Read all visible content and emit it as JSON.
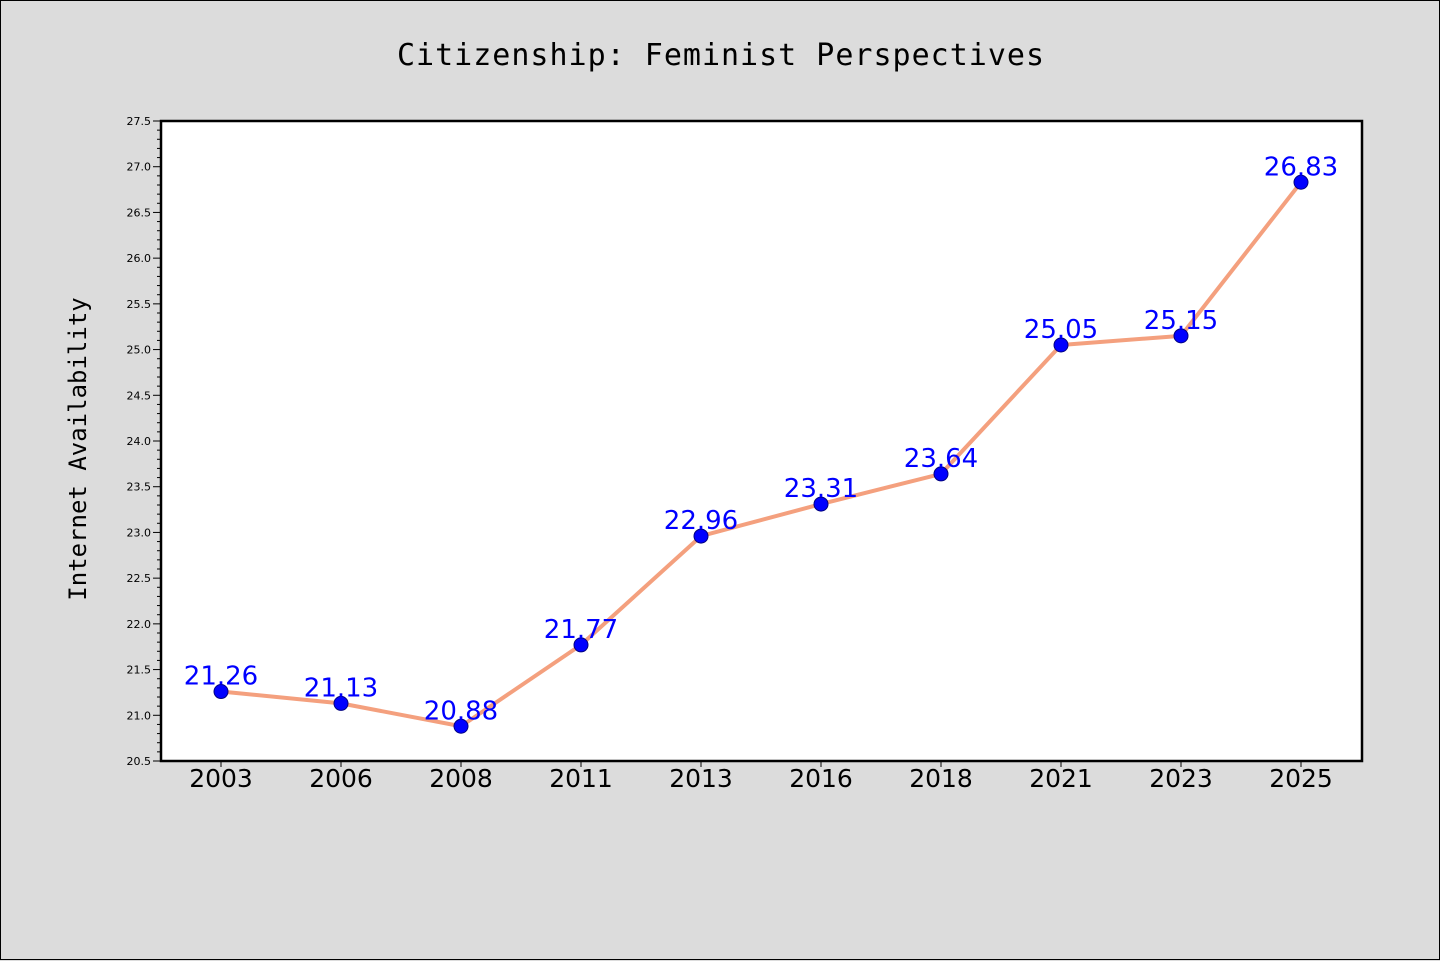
{
  "chart_data": {
    "type": "line",
    "title": "Citizenship: Feminist Perspectives",
    "xlabel": "",
    "ylabel": "Internet Availability",
    "categories": [
      "2003",
      "2006",
      "2008",
      "2011",
      "2013",
      "2016",
      "2018",
      "2021",
      "2023",
      "2025"
    ],
    "series": [
      {
        "values": [
          21.26,
          21.13,
          20.88,
          21.77,
          22.96,
          23.31,
          23.64,
          25.05,
          25.15,
          26.83
        ],
        "labels": [
          "21.26",
          "21.13",
          "20.88",
          "21.77",
          "22.96",
          "23.31",
          "23.64",
          "25.05",
          "25.15",
          "26.83"
        ]
      }
    ],
    "ylim": [
      20.5,
      27.5
    ],
    "yticks": [
      "20.5",
      "21.0",
      "21.5",
      "22.0",
      "22.5",
      "23.0",
      "23.5",
      "24.0",
      "24.5",
      "25.0",
      "25.5",
      "26.0",
      "26.5",
      "27.0",
      "27.5"
    ],
    "grid": false,
    "legend": "none",
    "colors": {
      "line": "#f4a07e",
      "marker": "#0000ff",
      "marker_edge": "#000080",
      "labels": "#0000ff",
      "background": "#dcdcdc",
      "plot_background": "#ffffff"
    }
  }
}
